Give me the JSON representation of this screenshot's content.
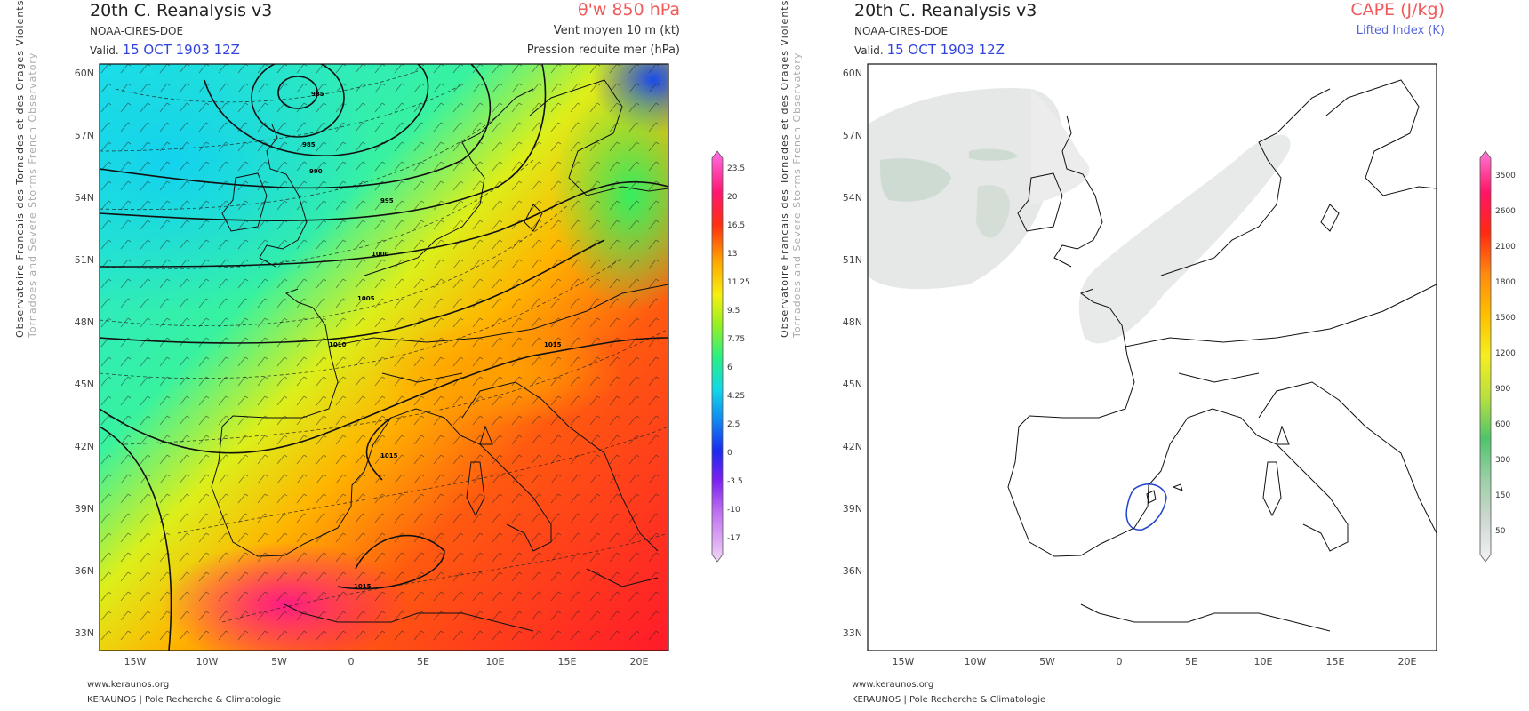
{
  "colors": {
    "header_red": "#f05a5a",
    "valid_blue": "#3344dd",
    "li_blue": "#5566dd"
  },
  "panels": [
    {
      "title": "20th C. Reanalysis v3",
      "source": "NOAA-CIRES-DOE",
      "valid_label": "Valid.",
      "valid_date": "15 OCT 1903 12Z",
      "param_main": "θ'w 850 hPa",
      "param_sub1": "Vent moyen 10 m (kt)",
      "param_sub2": "Pression reduite mer (hPa)",
      "colorbar": [
        "23.5",
        "20",
        "16.5",
        "13",
        "11.25",
        "9.5",
        "7.75",
        "6",
        "4.25",
        "2.5",
        "0",
        "-3.5",
        "-10",
        "-17"
      ],
      "isobar_labels": [
        "985",
        "990",
        "995",
        "1000",
        "1005",
        "1010",
        "1015",
        "1015",
        "1015"
      ]
    },
    {
      "title": "20th C. Reanalysis v3",
      "source": "NOAA-CIRES-DOE",
      "valid_label": "Valid.",
      "valid_date": "15 OCT 1903 12Z",
      "param_main": "CAPE (J/kg)",
      "param_sub1": "Lifted Index (K)",
      "colorbar": [
        "3500",
        "2600",
        "2100",
        "1800",
        "1500",
        "1200",
        "900",
        "600",
        "300",
        "150",
        "50"
      ]
    }
  ],
  "axes": {
    "lat_labels": [
      "60N",
      "57N",
      "54N",
      "51N",
      "48N",
      "45N",
      "42N",
      "39N",
      "36N",
      "33N"
    ],
    "lon_labels": [
      "15W",
      "10W",
      "5W",
      "0",
      "5E",
      "10E",
      "15E",
      "20E"
    ]
  },
  "side_text": {
    "line1": "Observatoire Francais des Tornades et des Orages Violents",
    "line2": "Tornadoes and Severe Storms French Observatory"
  },
  "footer": {
    "website": "www.keraunos.org",
    "org": "KERAUNOS | Pole Recherche & Climatologie"
  }
}
